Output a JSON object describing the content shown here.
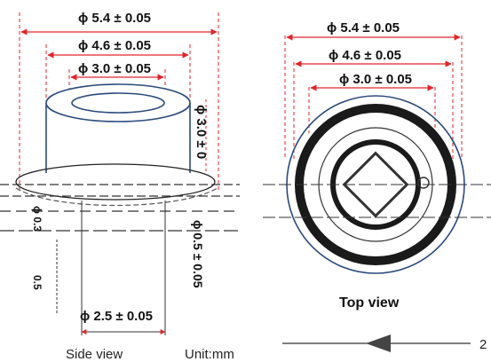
{
  "colors": {
    "dimension_line": "#e0262b",
    "outline": "#2a4a7c",
    "text": "#111111",
    "dark_fill": "#1a1a1a",
    "light_text": "#666666"
  },
  "side_view": {
    "dim_outer": "ϕ 5.4 ± 0.05",
    "dim_middle": "ϕ 4.6 ± 0.05",
    "dim_inner": "ϕ 3.0 ± 0.05",
    "dim_height": "ϕ 3.0 ± 0",
    "dim_pin_spacing": "ϕ 2.5 ± 0.05",
    "dim_pin_left": "ϕ 0.3",
    "dim_pin_length": "0.5",
    "dim_pin_diameter": "ϕ 0.5 ± 0.05",
    "caption": "Side view",
    "unit": "Unit:mm"
  },
  "top_view": {
    "dim_outer": "ϕ 5.4 ± 0.05",
    "dim_middle": "ϕ 4.6 ± 0.05",
    "dim_inner": "ϕ 3.0 ± 0.05",
    "caption": "Top view",
    "scale_value": "2"
  }
}
